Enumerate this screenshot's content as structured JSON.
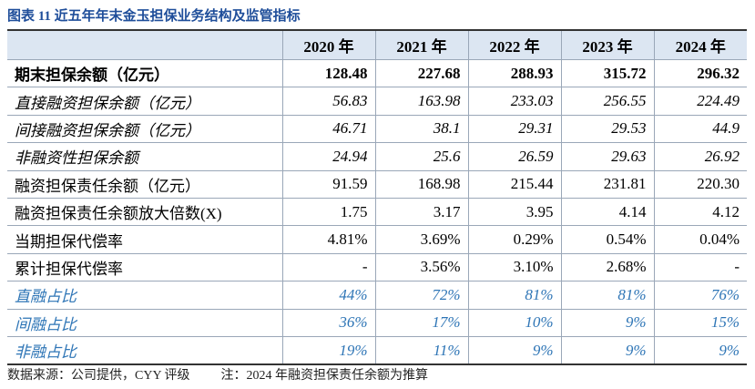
{
  "header": {
    "title": "图表 11 近五年年末金玉担保业务结构及监管指标"
  },
  "table": {
    "columns": [
      "",
      "2020 年",
      "2021 年",
      "2022 年",
      "2023 年",
      "2024 年"
    ],
    "rows": [
      [
        "期末担保余额（亿元）",
        "128.48",
        "227.68",
        "288.93",
        "315.72",
        "296.32"
      ],
      [
        "直接融资担保余额（亿元）",
        "56.83",
        "163.98",
        "233.03",
        "256.55",
        "224.49"
      ],
      [
        "间接融资担保余额（亿元）",
        "46.71",
        "38.1",
        "29.31",
        "29.53",
        "44.9"
      ],
      [
        "非融资性担保余额",
        "24.94",
        "25.6",
        "26.59",
        "29.63",
        "26.92"
      ],
      [
        "融资担保责任余额（亿元）",
        "91.59",
        "168.98",
        "215.44",
        "231.81",
        "220.30"
      ],
      [
        "融资担保责任余额放大倍数(X)",
        "1.75",
        "3.17",
        "3.95",
        "4.14",
        "4.12"
      ],
      [
        "当期担保代偿率",
        "4.81%",
        "3.69%",
        "0.29%",
        "0.54%",
        "0.04%"
      ],
      [
        "累计担保代偿率",
        "-",
        "3.56%",
        "3.10%",
        "2.68%",
        "-"
      ],
      [
        "直融占比",
        "44%",
        "72%",
        "81%",
        "81%",
        "76%"
      ],
      [
        "间融占比",
        "36%",
        "17%",
        "10%",
        "9%",
        "15%"
      ],
      [
        "非融占比",
        "19%",
        "11%",
        "9%",
        "9%",
        "9%"
      ]
    ]
  },
  "footer": {
    "source": "数据来源：公司提供，CYY 评级",
    "note": "注：2024 年融资担保责任余额为推算"
  }
}
